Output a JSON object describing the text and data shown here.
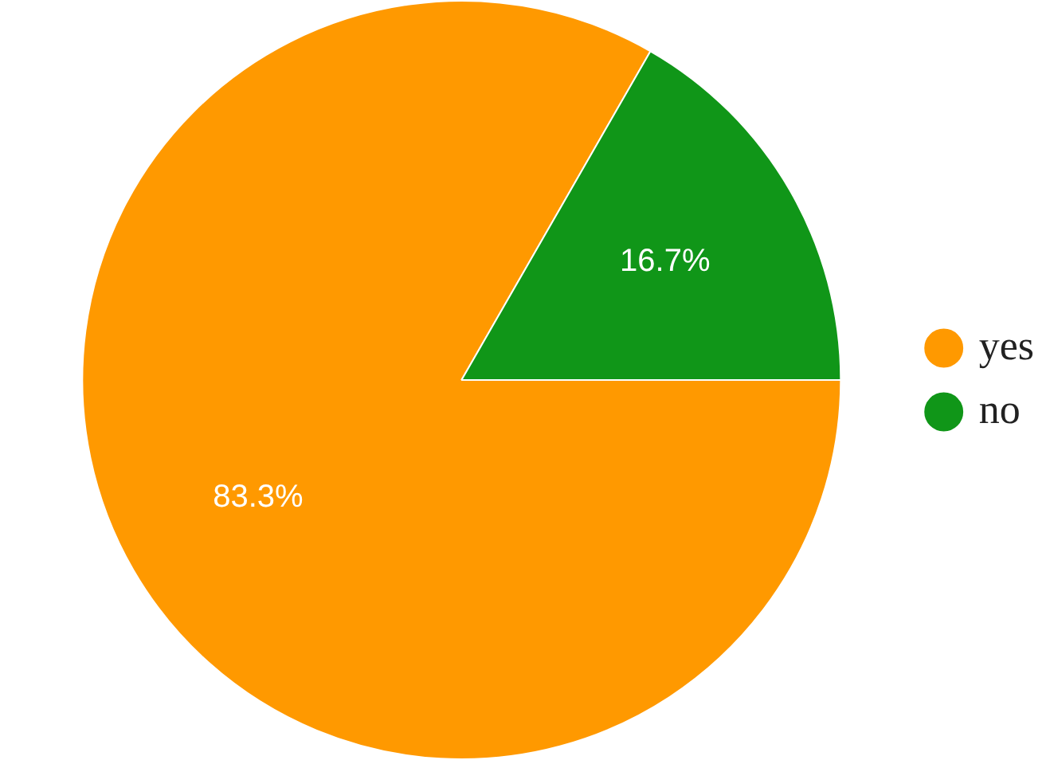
{
  "chart_data": {
    "type": "pie",
    "categories": [
      "yes",
      "no"
    ],
    "values": [
      83.3,
      16.7
    ],
    "colors": [
      "#ff9900",
      "#109618"
    ],
    "value_labels": [
      "83.3%",
      "16.7%"
    ],
    "legend": "right"
  }
}
